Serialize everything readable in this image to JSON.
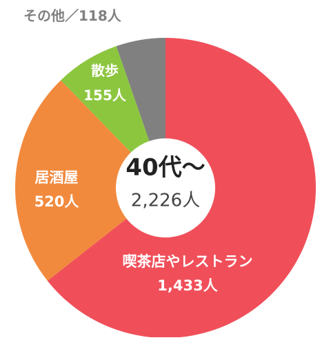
{
  "chart_data": {
    "type": "donut",
    "center_title": "40代〜",
    "center_subtitle": "2,226人",
    "categories": [
      "喫茶店やレストラン",
      "居酒屋",
      "散歩",
      "その他"
    ],
    "values": [
      1433,
      520,
      155,
      118
    ],
    "value_labels": [
      "1,433人",
      "520人",
      "155人",
      "118人"
    ],
    "colors": [
      "#f04f5a",
      "#f28a3e",
      "#8cc63f",
      "#808080"
    ],
    "label_separator": "／"
  }
}
